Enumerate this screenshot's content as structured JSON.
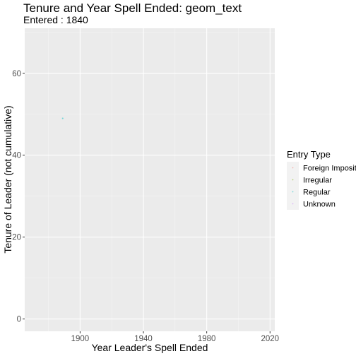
{
  "chart_data": {
    "type": "scatter",
    "title": "Tenure and Year Spell Ended: geom_text",
    "subtitle": "Entered : 1840",
    "xlabel": "Year Leader's Spell Ended",
    "ylabel": "Tenure of Leader (not cumulative)",
    "xlim": [
      1865,
      2023
    ],
    "ylim": [
      -3,
      71
    ],
    "x_ticks": [
      1900,
      1940,
      1980,
      2020
    ],
    "y_ticks": [
      0,
      20,
      40,
      60
    ],
    "x_tick_labels": [
      "1900",
      "1940",
      "1980",
      "2020"
    ],
    "y_tick_labels": [
      "0",
      "20",
      "40",
      "60"
    ],
    "grid": true,
    "legend": {
      "title": "Entry Type",
      "placement": "right",
      "entries": [
        "Foreign Imposition",
        "Irregular",
        "Regular",
        "Unknown"
      ]
    },
    "series": [
      {
        "name": "Regular",
        "color": "#00bfc4",
        "points": [
          {
            "x": 1889,
            "y": 49
          }
        ]
      }
    ],
    "legend_colors": [
      "#f8766d",
      "#7cae00",
      "#00bfc4",
      "#c77cff"
    ]
  }
}
